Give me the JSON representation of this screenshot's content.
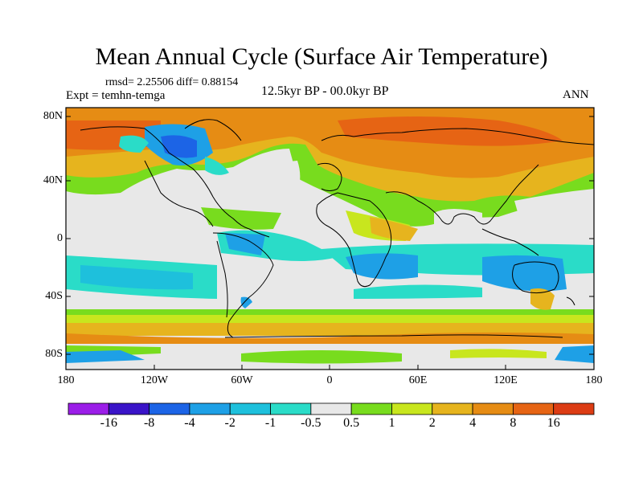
{
  "title": "Mean Annual Cycle (Surface Air Temperature)",
  "stats_text": "rmsd= 2.25506 diff= 0.88154",
  "experiment_text": "Expt = temhn-temga",
  "period_text": "12.5kyr BP - 00.0kyr BP",
  "season_text": "ANN",
  "y_axis_labels": [
    "80N",
    "40N",
    "0",
    "40S",
    "80S"
  ],
  "x_axis_labels": [
    "180",
    "120W",
    "60W",
    "0",
    "60E",
    "120E",
    "180"
  ],
  "colorbar": {
    "labels": [
      "-16",
      "-8",
      "-4",
      "-2",
      "-1",
      "-0.5",
      "0.5",
      "1",
      "2",
      "4",
      "8",
      "16"
    ],
    "colors": [
      "#9b1ee8",
      "#3a14c8",
      "#1c64e6",
      "#1ea0e6",
      "#1ec0dc",
      "#2adcc8",
      "#e8e8e8",
      "#78dc1e",
      "#c8e61e",
      "#e6b41e",
      "#e68c14",
      "#e66414",
      "#dc3c14"
    ]
  },
  "palette": {
    "ocean_neutral": "#e8e8e8",
    "warm_strong": "#e66414",
    "warm_mid": "#e68c14",
    "warm_light": "#e6b41e",
    "mild_warm": "#c8e61e",
    "slight_warm": "#78dc1e",
    "slight_cool": "#2adcc8",
    "cool": "#1ec0dc",
    "cooler": "#1ea0e6",
    "cold": "#1c64e6"
  }
}
